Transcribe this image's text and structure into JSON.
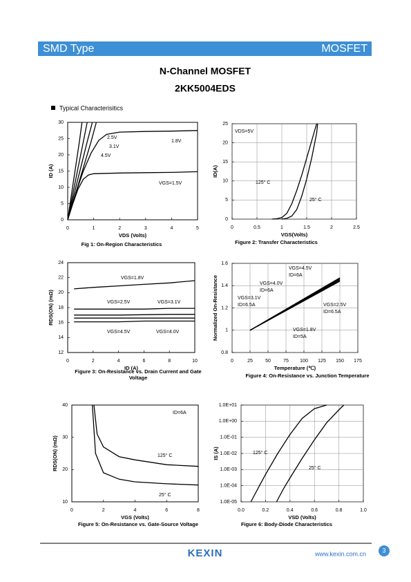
{
  "header": {
    "left": "SMD Type",
    "right": "MOSFET"
  },
  "title": "N-Channel MOSFET",
  "part": "2KK5004EDS",
  "section": "Typical  Characterisitics",
  "chart_data": [
    {
      "type": "line",
      "caption": "Fig 1: On-Region Characteristics",
      "xlabel": "VDS (Volts)",
      "ylabel": "ID (A)",
      "xlim": [
        0,
        5
      ],
      "xticks": [
        0,
        1,
        2,
        3,
        4,
        5
      ],
      "ylim": [
        0,
        30
      ],
      "yticks": [
        0,
        5,
        10,
        15,
        20,
        25,
        30
      ],
      "grid": false,
      "annotations": [
        "2.5V",
        "3.1V",
        "4.5V",
        "1.8V",
        "VGS=1.5V"
      ],
      "series": [
        {
          "color": "#000000",
          "x": [
            0,
            0.15,
            0.3,
            0.45,
            0.55
          ],
          "values": [
            0,
            8,
            16,
            24,
            30
          ]
        },
        {
          "color": "#000000",
          "x": [
            0,
            0.2,
            0.4,
            0.6,
            0.75
          ],
          "values": [
            0,
            8,
            16,
            24,
            30
          ]
        },
        {
          "color": "#000000",
          "x": [
            0,
            0.25,
            0.5,
            0.75,
            0.95
          ],
          "values": [
            0,
            8,
            16,
            24,
            30
          ]
        },
        {
          "color": "#000000",
          "x": [
            0,
            0.3,
            0.6,
            0.9,
            1.1
          ],
          "values": [
            0,
            8,
            16,
            24,
            30
          ]
        },
        {
          "color": "#000000",
          "x": [
            0,
            0.3,
            0.6,
            0.9,
            1.2,
            1.5,
            2,
            3,
            4,
            5
          ],
          "values": [
            0,
            8,
            15,
            20.5,
            24.5,
            26.3,
            27,
            27.2,
            27.3,
            27.5
          ]
        },
        {
          "color": "#000000",
          "x": [
            0,
            0.2,
            0.4,
            0.6,
            0.8,
            1,
            2,
            3,
            4,
            5
          ],
          "values": [
            0,
            5,
            9.5,
            12.5,
            13.8,
            14.2,
            14.4,
            14.5,
            14.6,
            14.8
          ]
        }
      ]
    },
    {
      "type": "line",
      "caption": "Figure 2: Transfer Characteristics",
      "xlabel": "VGS(Volts)",
      "ylabel": "ID(A)",
      "xlim": [
        0,
        2.5
      ],
      "xticks": [
        0,
        0.5,
        1,
        1.5,
        2,
        2.5
      ],
      "ylim": [
        0,
        25
      ],
      "yticks": [
        0,
        5,
        10,
        15,
        20,
        25
      ],
      "grid": true,
      "annotations": [
        "VDS=5V",
        "125° C",
        "25° C"
      ],
      "series": [
        {
          "color": "#000000",
          "x": [
            0.8,
            0.9,
            1.0,
            1.1,
            1.2,
            1.3,
            1.4,
            1.5,
            1.6,
            1.7
          ],
          "values": [
            0,
            0.1,
            0.4,
            1.5,
            4,
            7.5,
            11.5,
            16,
            20.5,
            25
          ]
        },
        {
          "color": "#000000",
          "x": [
            1.0,
            1.1,
            1.2,
            1.3,
            1.4,
            1.5,
            1.6,
            1.7,
            1.72
          ],
          "values": [
            0,
            0.2,
            0.8,
            2.5,
            6,
            10.5,
            16,
            22.5,
            25
          ]
        }
      ]
    },
    {
      "type": "line",
      "caption": [
        "Figure 3: On-Resistance vs. Drain Current and Gate",
        "Voltage"
      ],
      "xlabel": "ID (A)",
      "ylabel": "RDS(ON) (mΩ)",
      "xlim": [
        0,
        10
      ],
      "xticks": [
        0,
        2,
        4,
        6,
        8,
        10
      ],
      "ylim": [
        12,
        24
      ],
      "yticks": [
        12,
        14,
        16,
        18,
        20,
        22,
        24
      ],
      "grid": false,
      "annotations": [
        "VGS=1.8V",
        "VGS=2.5V",
        "VGS=3.1V",
        "VGS=4.5V",
        "VGS=4.0V"
      ],
      "series": [
        {
          "color": "#000000",
          "x": [
            0.5,
            2,
            4,
            6,
            8,
            10
          ],
          "values": [
            20.5,
            20.7,
            20.9,
            21.1,
            21.3,
            21.6
          ]
        },
        {
          "color": "#000000",
          "x": [
            0.5,
            2,
            4,
            6,
            8,
            10
          ],
          "values": [
            17.8,
            17.8,
            17.8,
            17.8,
            17.9,
            17.9
          ]
        },
        {
          "color": "#000000",
          "x": [
            0.5,
            2,
            4,
            6,
            8,
            10
          ],
          "values": [
            17,
            17,
            17,
            17.05,
            17.1,
            17.1
          ]
        },
        {
          "color": "#000000",
          "x": [
            0.5,
            2,
            4,
            6,
            8,
            10
          ],
          "values": [
            16.6,
            16.6,
            16.6,
            16.6,
            16.6,
            16.6
          ]
        },
        {
          "color": "#000000",
          "x": [
            0.5,
            2,
            4,
            6,
            8,
            10
          ],
          "values": [
            16.1,
            16.1,
            16.1,
            16.2,
            16.2,
            16.2
          ]
        }
      ]
    },
    {
      "type": "line",
      "caption": "Figure 4: On-Resistance vs. Junction Temperature",
      "xlabel": "Temperature (℃)",
      "ylabel": "Normalized On-Resistance",
      "xlim": [
        0,
        175
      ],
      "xticks": [
        0,
        25,
        50,
        75,
        100,
        125,
        150,
        175
      ],
      "ylim": [
        0.8,
        1.6
      ],
      "yticks": [
        0.8,
        1,
        1.2,
        1.4,
        1.6
      ],
      "grid": true,
      "annotations": [
        "VGS=4.5V",
        "ID=6A",
        "VGS=4.0V",
        "ID=6A",
        "VGS=3.1V",
        "ID=6.5A",
        "VGS=2.5V",
        "ID=6.5A",
        "VGS=1.8V",
        "ID=5A"
      ],
      "series": [
        {
          "color": "#000000",
          "x": [
            25,
            150
          ],
          "values": [
            1,
            1.47
          ]
        },
        {
          "color": "#000000",
          "x": [
            25,
            150
          ],
          "values": [
            1,
            1.46
          ]
        },
        {
          "color": "#000000",
          "x": [
            25,
            150
          ],
          "values": [
            1,
            1.45
          ]
        },
        {
          "color": "#000000",
          "x": [
            25,
            150
          ],
          "values": [
            1,
            1.44
          ]
        }
      ]
    },
    {
      "type": "line",
      "caption": "Figure 5: On-Resistance vs. Gate-Source Voltage",
      "xlabel": "VGS (Volts)",
      "ylabel": "RDS(ON) (mΩ)",
      "xlim": [
        0,
        8
      ],
      "xticks": [
        0,
        2,
        4,
        6,
        8
      ],
      "ylim": [
        10,
        40
      ],
      "yticks": [
        10,
        20,
        30,
        40
      ],
      "grid": false,
      "annotations": [
        "ID=6A",
        "125° C",
        "25° C"
      ],
      "series": [
        {
          "color": "#000000",
          "x": [
            1.4,
            1.6,
            2,
            3,
            4,
            6,
            8
          ],
          "values": [
            40,
            31,
            27,
            24,
            23,
            21.5,
            21
          ]
        },
        {
          "color": "#000000",
          "x": [
            1.3,
            1.5,
            2,
            3,
            4,
            6,
            8
          ],
          "values": [
            40,
            25,
            19,
            17,
            16.2,
            15.6,
            15.2
          ]
        }
      ]
    },
    {
      "type": "line",
      "caption": "Figure 6: Body-Diode Characteristics",
      "xlabel": "VSD (Volts)",
      "ylabel": "IS (A)",
      "xlim": [
        0,
        1
      ],
      "xticks": [
        {
          "value": 0,
          "label": "0.0"
        },
        0.2,
        0.4,
        0.6,
        0.8,
        {
          "value": 1,
          "label": "1.0"
        }
      ],
      "yscale": "log",
      "ylim": [
        1e-05,
        10
      ],
      "yticks": [
        {
          "value": 1e-05,
          "label": "1.0E-05"
        },
        {
          "value": 0.0001,
          "label": "1.0E-04"
        },
        {
          "value": 0.001,
          "label": "1.0E-03"
        },
        {
          "value": 0.01,
          "label": "1.0E-02"
        },
        {
          "value": 0.1,
          "label": "1.0E-01"
        },
        {
          "value": 1,
          "label": "1.0E+00"
        },
        {
          "value": 10,
          "label": "1.0E+01"
        }
      ],
      "grid": true,
      "annotations": [
        "125° C",
        "25° C"
      ],
      "series": [
        {
          "color": "#000000",
          "x": [
            0.08,
            0.15,
            0.2,
            0.3,
            0.4,
            0.5,
            0.6,
            0.7
          ],
          "values": [
            1e-05,
            0.0001,
            0.0005,
            0.01,
            0.15,
            1.5,
            6,
            10
          ]
        },
        {
          "color": "#000000",
          "x": [
            0.29,
            0.35,
            0.4,
            0.5,
            0.6,
            0.7,
            0.8,
            0.84
          ],
          "values": [
            1e-05,
            7e-05,
            0.0003,
            0.005,
            0.07,
            0.8,
            5,
            10
          ]
        }
      ]
    }
  ],
  "footer": {
    "logo": "KEXIN",
    "url": "www.kexin.com.cn",
    "page": "3"
  }
}
